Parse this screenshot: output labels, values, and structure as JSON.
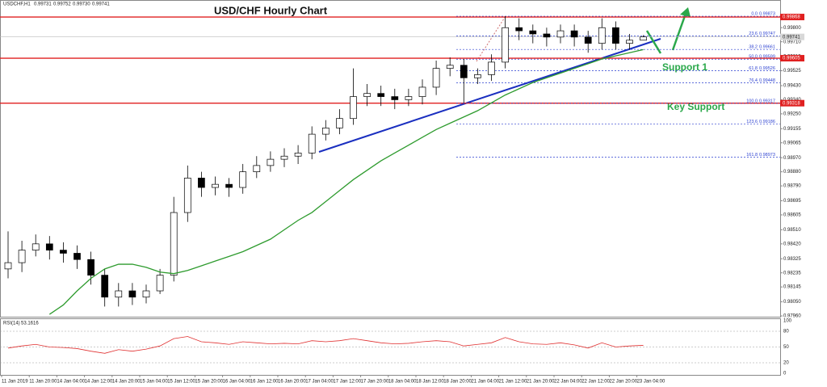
{
  "chart_data": {
    "type": "candlestick",
    "title": "USD/CHF Hourly Chart",
    "header": {
      "symbol": "USDCHF,H1",
      "ohlc": [
        0.99731,
        0.99752,
        {
          "value": 0.9973,
          "label": "0.99730"
        },
        0.99741
      ]
    },
    "annotations": [
      "Support 1",
      "Key Support"
    ],
    "categories": [
      "11 Jan 2019",
      null,
      "11 Jan 20:00",
      null,
      "14 Jan 04:00",
      null,
      "14 Jan 12:00",
      null,
      "14 Jan 20:00",
      null,
      "15 Jan 04:00",
      null,
      "15 Jan 12:00",
      null,
      "15 Jan 20:00",
      null,
      "16 Jan 04:00",
      null,
      "16 Jan 12:00",
      null,
      "16 Jan 20:00",
      null,
      "17 Jan 04:00",
      null,
      "17 Jan 12:00",
      null,
      "17 Jan 20:00",
      null,
      "18 Jan 04:00",
      null,
      "18 Jan 12:00",
      null,
      "18 Jan 20:00",
      null,
      "21 Jan 04:00",
      null,
      "21 Jan 12:00",
      null,
      "21 Jan 20:00",
      null,
      "22 Jan 04:00",
      null,
      "22 Jan 12:00",
      null,
      "22 Jan 20:00",
      null,
      "23 Jan 04:00",
      null
    ],
    "open": [
      0.9826,
      0.983,
      0.9838,
      0.9842,
      0.9838,
      0.9836,
      0.9832,
      0.9822,
      0.9808,
      0.9812,
      0.9808,
      0.9812,
      0.9822,
      0.9862,
      0.9884,
      0.9878,
      0.988,
      0.9878,
      0.9888,
      0.9892,
      0.9896,
      0.9898,
      0.99,
      0.9912,
      0.9916,
      0.9922,
      0.9936,
      0.9938,
      0.9936,
      0.9934,
      0.9936,
      0.9942,
      0.9954,
      0.9956,
      0.9948,
      0.995,
      0.9958,
      0.998,
      0.9978,
      0.9976,
      0.9974,
      0.9978,
      0.9974,
      0.997,
      0.998,
      0.997,
      0.9972,
      null
    ],
    "high": [
      0.985,
      0.9844,
      0.9848,
      0.9847,
      0.9843,
      0.9841,
      0.9837,
      0.9826,
      0.9817,
      0.9817,
      0.9816,
      0.9826,
      0.9872,
      0.9892,
      0.9888,
      0.9885,
      0.9884,
      0.9893,
      0.9898,
      0.9901,
      0.9903,
      0.9905,
      0.9917,
      0.9921,
      0.9928,
      0.9954,
      0.9944,
      0.9943,
      0.9941,
      0.9941,
      0.9947,
      0.9959,
      0.9961,
      0.996,
      0.9954,
      0.9963,
      0.99873,
      0.9986,
      0.9982,
      0.998,
      0.9982,
      0.9982,
      0.9978,
      0.9986,
      0.9984,
      0.9976,
      0.99752,
      null
    ],
    "low": [
      0.982,
      0.9824,
      0.9834,
      0.9832,
      0.983,
      0.9826,
      0.9816,
      0.9802,
      0.9802,
      0.9803,
      0.9804,
      0.981,
      0.9818,
      0.9856,
      0.9872,
      0.9873,
      0.9872,
      0.9874,
      0.9884,
      0.9888,
      0.9891,
      0.9893,
      0.9896,
      0.9908,
      0.9912,
      0.9918,
      0.993,
      0.993,
      0.9928,
      0.993,
      0.9931,
      0.9937,
      0.9949,
      0.9932,
      0.9944,
      0.9946,
      0.9954,
      0.9972,
      0.997,
      0.9968,
      0.997,
      0.9968,
      0.9964,
      0.9966,
      0.9966,
      0.9966,
      0.9973,
      null
    ],
    "close": [
      0.983,
      0.9838,
      0.9842,
      0.9838,
      0.9836,
      0.9832,
      0.9822,
      0.9808,
      0.9812,
      0.9808,
      0.9812,
      0.9822,
      0.9862,
      0.9884,
      0.9878,
      0.988,
      0.9878,
      0.9888,
      0.9892,
      0.9896,
      0.9898,
      0.99,
      0.9912,
      0.9916,
      0.9922,
      0.9936,
      0.9938,
      0.9936,
      0.9934,
      0.9936,
      0.9942,
      0.9954,
      0.9956,
      0.9948,
      0.995,
      0.9958,
      0.998,
      0.9978,
      0.9976,
      0.9974,
      0.9978,
      0.9974,
      0.997,
      0.998,
      0.997,
      0.9972,
      0.99741,
      null
    ],
    "moving_average": {
      "color": "#2e9b2e",
      "values": [
        null,
        null,
        null,
        0.9797,
        0.9803,
        0.9812,
        0.982,
        0.9826,
        0.9829,
        0.9829,
        0.9827,
        0.9824,
        0.9823,
        0.9825,
        0.9828,
        0.9831,
        0.9834,
        0.9837,
        0.9841,
        0.9845,
        0.9851,
        0.9857,
        0.9862,
        0.9869,
        0.9876,
        0.9883,
        0.9889,
        0.9895,
        0.99,
        0.9905,
        0.991,
        0.9915,
        0.9919,
        0.9923,
        0.9927,
        0.9932,
        0.9937,
        0.9941,
        0.9945,
        0.9948,
        0.9951,
        0.9954,
        0.9957,
        0.996,
        0.9962,
        0.9964,
        0.9966,
        null
      ]
    },
    "ylim": [
      0.97955,
      0.99925
    ],
    "yticks": [
      {
        "value": 0.998,
        "label": "0.99800"
      },
      {
        "value": 0.9971,
        "label": "0.99710"
      },
      0.99615,
      0.99525,
      {
        "value": 0.9943,
        "label": "0.99430"
      },
      {
        "value": 0.9934,
        "label": "0.99340"
      },
      {
        "value": 0.9925,
        "label": "0.99250"
      },
      0.99155,
      0.99065,
      {
        "value": 0.9897,
        "label": "0.98970"
      },
      {
        "value": 0.9888,
        "label": "0.98880"
      },
      {
        "value": 0.9879,
        "label": "0.98790"
      },
      0.98695,
      0.98605,
      {
        "value": 0.9851,
        "label": "0.98510"
      },
      {
        "value": 0.9842,
        "label": "0.98420"
      },
      0.98325,
      0.98235,
      0.98145,
      {
        "value": 0.9805,
        "label": "0.98050"
      },
      {
        "value": 0.9796,
        "label": "0.97960"
      }
    ],
    "levels": [
      0.99868,
      0.99605,
      0.99318
    ],
    "level_color": "#e02020",
    "current_price": 0.99741,
    "fib_levels": [
      {
        "ratio": "0.0",
        "price": 0.99873
      },
      {
        "ratio": "23.6",
        "price": 0.99747
      },
      {
        "ratio": "38.2",
        "price": 0.99661
      },
      {
        "ratio": "50.0",
        "price": 0.99599
      },
      {
        "ratio": "61.8",
        "price": 0.99526
      },
      {
        "ratio": "76.4",
        "price": 0.99448
      },
      {
        "ratio": "100.0",
        "price": 0.99317
      },
      {
        "ratio": "123.6",
        "price": 0.99186
      },
      {
        "ratio": "161.8",
        "price": 0.98973
      }
    ],
    "rsi": {
      "name": "RSI(14)",
      "last": 53.1616,
      "color": "#e03030",
      "values": [
        48,
        52,
        55,
        50,
        49,
        47,
        42,
        38,
        45,
        42,
        46,
        52,
        66,
        70,
        60,
        58,
        55,
        60,
        58,
        56,
        57,
        56,
        62,
        60,
        62,
        66,
        62,
        58,
        56,
        57,
        60,
        62,
        60,
        52,
        55,
        58,
        68,
        60,
        56,
        55,
        58,
        54,
        48,
        58,
        50,
        52,
        53.1616,
        null
      ],
      "ylim": [
        0,
        100
      ],
      "yticks": [
        0,
        20,
        50,
        80,
        100
      ]
    }
  }
}
